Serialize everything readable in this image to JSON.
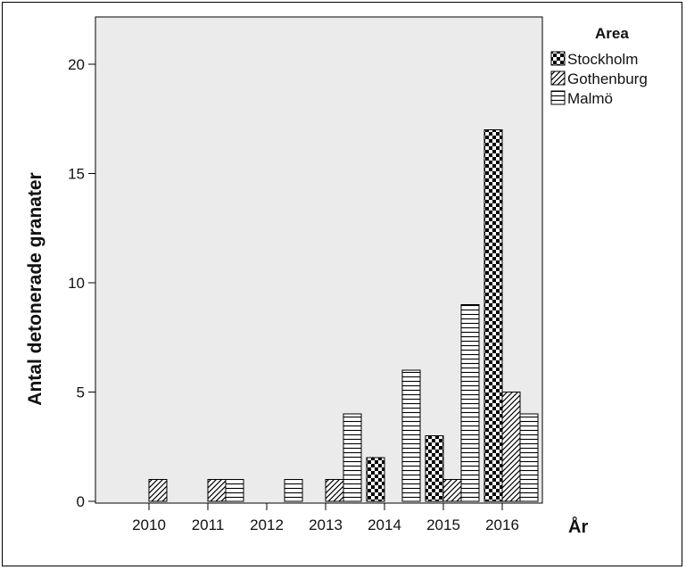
{
  "chart_data": {
    "type": "bar",
    "categories": [
      "2010",
      "2011",
      "2012",
      "2013",
      "2014",
      "2015",
      "2016"
    ],
    "series": [
      {
        "name": "Stockholm",
        "values": [
          0,
          0,
          0,
          0,
          2,
          3,
          17
        ],
        "pattern": "checker"
      },
      {
        "name": "Gothenburg",
        "values": [
          1,
          1,
          0,
          1,
          0,
          1,
          5
        ],
        "pattern": "diagonal"
      },
      {
        "name": "Malmö",
        "values": [
          0,
          1,
          1,
          4,
          6,
          9,
          4
        ],
        "pattern": "horizontal"
      }
    ],
    "xlabel": "År",
    "ylabel": "Antal detonerade granater",
    "ylim": [
      0,
      22.2
    ],
    "yticks": [
      0,
      5,
      10,
      15,
      20
    ],
    "legend_title": "Area",
    "legend_position": "top-right",
    "plot_background": "#ebebeb",
    "bar_fill": "#ffffff",
    "bar_stroke": "#000000"
  }
}
